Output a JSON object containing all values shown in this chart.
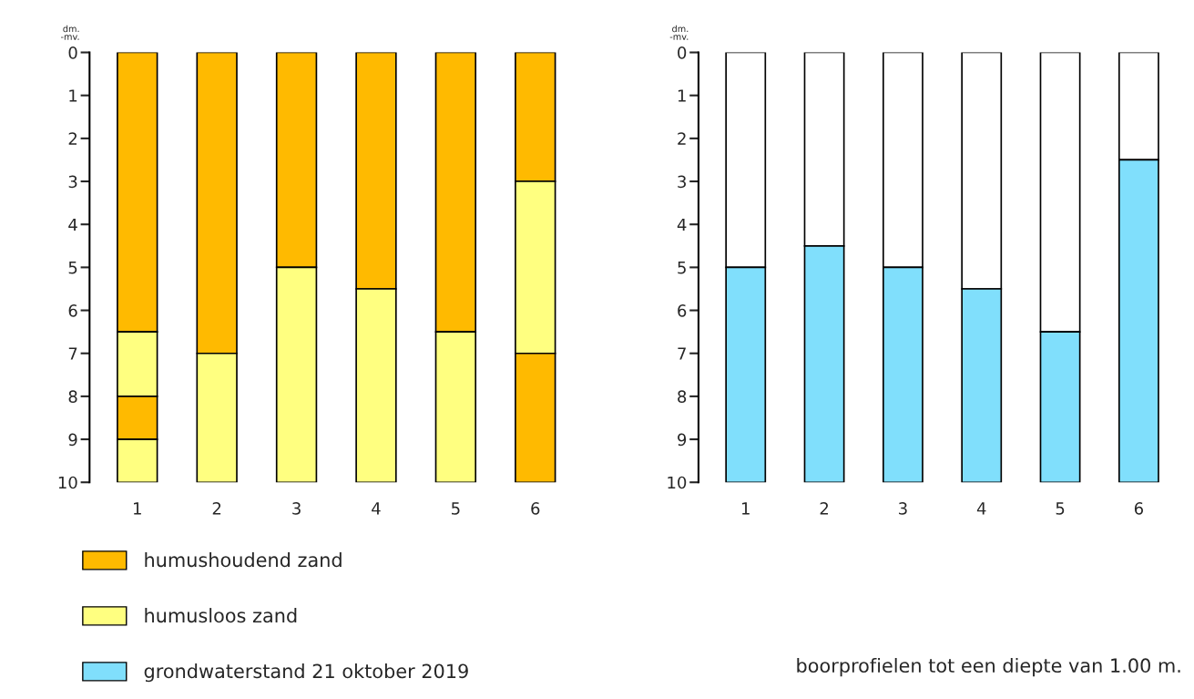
{
  "chart_data": [
    {
      "type": "bar",
      "stacked": true,
      "ylabel": "dm.\n-mv.",
      "categories": [
        "1",
        "2",
        "3",
        "4",
        "5",
        "6"
      ],
      "ylim": [
        10,
        0
      ],
      "yticks": [
        0,
        1,
        2,
        3,
        4,
        5,
        6,
        7,
        8,
        9,
        10
      ],
      "grid": false,
      "legend": "bottom left",
      "series": [
        {
          "name": "humushoudend zand",
          "color": "#ffba00",
          "values": [
            6.5,
            7,
            5,
            5.5,
            6.5,
            3
          ]
        },
        {
          "name": "humusloos zand",
          "color": "#ffff80",
          "values": [
            1.5,
            3,
            5,
            4.5,
            3.5,
            4
          ]
        },
        {
          "color": "#ffba00",
          "values": [
            1,
            null,
            null,
            null,
            null,
            3
          ]
        },
        {
          "color": "#ffff80",
          "values": [
            1,
            null,
            null,
            null,
            null,
            null
          ]
        }
      ]
    },
    {
      "type": "bar",
      "stacked": true,
      "ylabel": "dm.\n-mv.",
      "categories": [
        "1",
        "2",
        "3",
        "4",
        "5",
        "6"
      ],
      "ylim": [
        10,
        0
      ],
      "yticks": [
        0,
        1,
        2,
        3,
        4,
        5,
        6,
        7,
        8,
        9,
        10
      ],
      "grid": false,
      "legend": "bottom left",
      "annotations": [
        "boorprofielen tot een diepte van 1.00 m."
      ],
      "series": [
        {
          "color": "#ffffff",
          "values": [
            5,
            4.5,
            5,
            5.5,
            6.5,
            2.5
          ]
        },
        {
          "name": "grondwaterstand 21 oktober 2019",
          "color": "#80dffc",
          "values": [
            5,
            5.5,
            5,
            4.5,
            3.5,
            7.5
          ]
        }
      ]
    }
  ]
}
